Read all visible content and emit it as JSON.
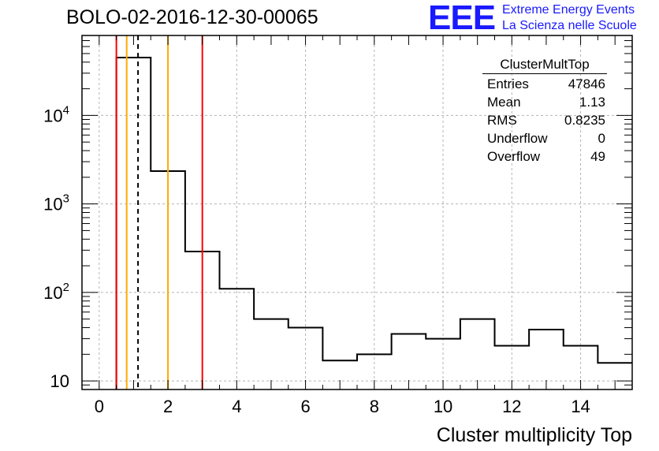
{
  "header": {
    "run_title": "BOLO-02-2016-12-30-00065",
    "logo_mark": "EEE",
    "logo_line1": "Extreme Energy Events",
    "logo_line2": "La Scienza nelle Scuole"
  },
  "stats_box": {
    "name": "ClusterMultTop",
    "rows": [
      {
        "label": "Entries",
        "value": "47846"
      },
      {
        "label": "Mean",
        "value": "1.13"
      },
      {
        "label": "RMS",
        "value": "0.8235"
      },
      {
        "label": "Underflow",
        "value": "0"
      },
      {
        "label": "Overflow",
        "value": "49"
      }
    ]
  },
  "colors": {
    "histogram": "#000000",
    "red_line": "#ff0000",
    "orange_line": "#ffaa00",
    "grid": "#b4b4b4",
    "logo": "#1a1aff"
  },
  "chart_data": {
    "type": "histogram",
    "title": "BOLO-02-2016-12-30-00065",
    "xlabel": "Cluster multiplicity Top",
    "ylabel": "",
    "yscale": "log",
    "xlim": [
      -0.5,
      15.5
    ],
    "ylim": [
      8,
      80000
    ],
    "grid": true,
    "x_ticks": [
      0,
      2,
      4,
      6,
      8,
      10,
      12,
      14
    ],
    "y_ticks": [
      {
        "value": 10,
        "base": "10",
        "exp": ""
      },
      {
        "value": 100,
        "base": "10",
        "exp": "2"
      },
      {
        "value": 1000,
        "base": "10",
        "exp": "3"
      },
      {
        "value": 10000,
        "base": "10",
        "exp": "4"
      }
    ],
    "bin_width": 1,
    "bins": [
      {
        "x": 1,
        "count": 45000
      },
      {
        "x": 2,
        "count": 2350
      },
      {
        "x": 3,
        "count": 290
      },
      {
        "x": 4,
        "count": 110
      },
      {
        "x": 5,
        "count": 50
      },
      {
        "x": 6,
        "count": 40
      },
      {
        "x": 7,
        "count": 17
      },
      {
        "x": 8,
        "count": 20
      },
      {
        "x": 9,
        "count": 34
      },
      {
        "x": 10,
        "count": 30
      },
      {
        "x": 11,
        "count": 50
      },
      {
        "x": 12,
        "count": 25
      },
      {
        "x": 13,
        "count": 38
      },
      {
        "x": 14,
        "count": 25
      },
      {
        "x": 15,
        "count": 16
      }
    ],
    "vertical_lines": [
      {
        "x": 0.5,
        "color": "#ff0000",
        "style": "solid"
      },
      {
        "x": 0.8,
        "color": "#ffaa00",
        "style": "solid"
      },
      {
        "x": 1.13,
        "color": "#000000",
        "style": "dashed"
      },
      {
        "x": 2.0,
        "color": "#ffaa00",
        "style": "solid"
      },
      {
        "x": 3.0,
        "color": "#ff0000",
        "style": "solid"
      }
    ]
  }
}
